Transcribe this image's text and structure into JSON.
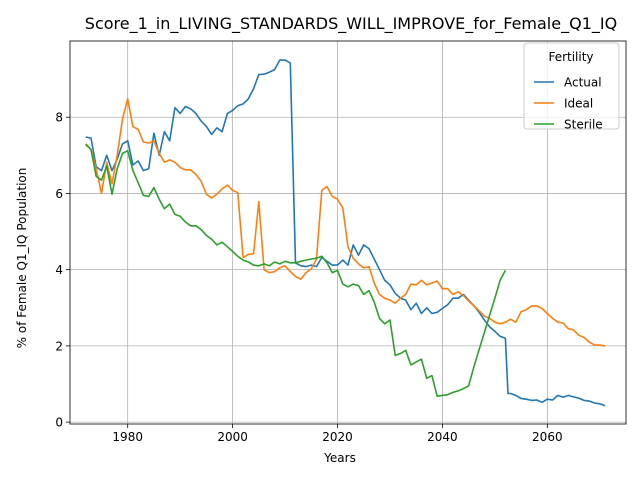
{
  "chart_data": {
    "type": "line",
    "title": "Score_1_in_LIVING_STANDARDS_WILL_IMPROVE_for_Female_Q1_IQ",
    "xlabel": "Years",
    "ylabel": "% of Female Q1_IQ Population",
    "xlim": [
      1969,
      2075
    ],
    "ylim": [
      -0.05,
      10.0
    ],
    "xticks": [
      1980,
      2000,
      2020,
      2040,
      2060
    ],
    "xtick_labels": [
      "1980",
      "2000",
      "2020",
      "2040",
      "2060"
    ],
    "yticks": [
      0,
      2,
      4,
      6,
      8
    ],
    "ytick_labels": [
      "0",
      "2",
      "4",
      "6",
      "8"
    ],
    "grid": true,
    "legend": {
      "title": "Fertility",
      "position": "top-right"
    },
    "series": [
      {
        "name": "Actual",
        "color": "#1f77b4",
        "points": [
          [
            1972,
            7.48
          ],
          [
            1973,
            7.45
          ],
          [
            1974,
            6.7
          ],
          [
            1975,
            6.6
          ],
          [
            1976,
            7.0
          ],
          [
            1977,
            6.6
          ],
          [
            1978,
            6.9
          ],
          [
            1979,
            7.3
          ],
          [
            1980,
            7.38
          ],
          [
            1981,
            6.75
          ],
          [
            1982,
            6.85
          ],
          [
            1983,
            6.6
          ],
          [
            1984,
            6.65
          ],
          [
            1985,
            7.58
          ],
          [
            1986,
            7.0
          ],
          [
            1987,
            7.62
          ],
          [
            1988,
            7.38
          ],
          [
            1989,
            8.25
          ],
          [
            1990,
            8.1
          ],
          [
            1991,
            8.28
          ],
          [
            1992,
            8.22
          ],
          [
            1993,
            8.1
          ],
          [
            1994,
            7.9
          ],
          [
            1995,
            7.76
          ],
          [
            1996,
            7.55
          ],
          [
            1997,
            7.72
          ],
          [
            1998,
            7.62
          ],
          [
            1999,
            8.1
          ],
          [
            2000,
            8.18
          ],
          [
            2001,
            8.3
          ],
          [
            2002,
            8.35
          ],
          [
            2003,
            8.48
          ],
          [
            2004,
            8.75
          ],
          [
            2005,
            9.12
          ],
          [
            2006,
            9.13
          ],
          [
            2007,
            9.18
          ],
          [
            2008,
            9.25
          ],
          [
            2009,
            9.5
          ],
          [
            2010,
            9.5
          ],
          [
            2011,
            9.42
          ],
          [
            2012,
            4.18
          ],
          [
            2013,
            4.1
          ],
          [
            2014,
            4.08
          ],
          [
            2015,
            4.12
          ],
          [
            2016,
            4.08
          ],
          [
            2017,
            4.32
          ],
          [
            2018,
            4.22
          ],
          [
            2019,
            4.12
          ],
          [
            2020,
            4.12
          ],
          [
            2021,
            4.25
          ],
          [
            2022,
            4.12
          ],
          [
            2023,
            4.65
          ],
          [
            2024,
            4.38
          ],
          [
            2025,
            4.65
          ],
          [
            2026,
            4.55
          ],
          [
            2027,
            4.28
          ],
          [
            2028,
            4.0
          ],
          [
            2029,
            3.72
          ],
          [
            2030,
            3.6
          ],
          [
            2031,
            3.38
          ],
          [
            2032,
            3.25
          ],
          [
            2033,
            3.2
          ],
          [
            2034,
            2.95
          ],
          [
            2035,
            3.12
          ],
          [
            2036,
            2.85
          ],
          [
            2037,
            3.0
          ],
          [
            2038,
            2.85
          ],
          [
            2039,
            2.88
          ],
          [
            2040,
            2.98
          ],
          [
            2041,
            3.08
          ],
          [
            2042,
            3.25
          ],
          [
            2043,
            3.25
          ],
          [
            2044,
            3.35
          ],
          [
            2045,
            3.2
          ],
          [
            2046,
            3.05
          ],
          [
            2047,
            2.88
          ],
          [
            2048,
            2.68
          ],
          [
            2049,
            2.5
          ],
          [
            2050,
            2.38
          ],
          [
            2051,
            2.25
          ],
          [
            2052,
            2.2
          ],
          [
            2052.5,
            0.75
          ],
          [
            2053,
            0.75
          ],
          [
            2054,
            0.7
          ],
          [
            2055,
            0.62
          ],
          [
            2056,
            0.6
          ],
          [
            2057,
            0.57
          ],
          [
            2058,
            0.58
          ],
          [
            2059,
            0.52
          ],
          [
            2060,
            0.6
          ],
          [
            2061,
            0.58
          ],
          [
            2062,
            0.7
          ],
          [
            2063,
            0.65
          ],
          [
            2064,
            0.7
          ],
          [
            2065,
            0.66
          ],
          [
            2066,
            0.63
          ],
          [
            2067,
            0.57
          ],
          [
            2068,
            0.55
          ],
          [
            2069,
            0.5
          ],
          [
            2070,
            0.48
          ],
          [
            2071,
            0.43
          ]
        ]
      },
      {
        "name": "Ideal",
        "color": "#ff7f0e",
        "points": [
          [
            1972,
            7.28
          ],
          [
            1973,
            7.15
          ],
          [
            1974,
            6.65
          ],
          [
            1975,
            6.0
          ],
          [
            1976,
            6.82
          ],
          [
            1977,
            6.25
          ],
          [
            1978,
            7.0
          ],
          [
            1979,
            7.95
          ],
          [
            1980,
            8.48
          ],
          [
            1981,
            7.75
          ],
          [
            1982,
            7.68
          ],
          [
            1983,
            7.35
          ],
          [
            1984,
            7.32
          ],
          [
            1985,
            7.38
          ],
          [
            1986,
            7.05
          ],
          [
            1987,
            6.82
          ],
          [
            1988,
            6.88
          ],
          [
            1989,
            6.82
          ],
          [
            1990,
            6.68
          ],
          [
            1991,
            6.62
          ],
          [
            1992,
            6.62
          ],
          [
            1993,
            6.5
          ],
          [
            1994,
            6.32
          ],
          [
            1995,
            5.98
          ],
          [
            1996,
            5.88
          ],
          [
            1997,
            5.98
          ],
          [
            1998,
            6.12
          ],
          [
            1999,
            6.22
          ],
          [
            2000,
            6.08
          ],
          [
            2001,
            6.02
          ],
          [
            2002,
            4.32
          ],
          [
            2003,
            4.4
          ],
          [
            2004,
            4.42
          ],
          [
            2005,
            5.78
          ],
          [
            2006,
            4.0
          ],
          [
            2007,
            3.92
          ],
          [
            2008,
            3.95
          ],
          [
            2009,
            4.05
          ],
          [
            2010,
            4.1
          ],
          [
            2011,
            3.95
          ],
          [
            2012,
            3.82
          ],
          [
            2013,
            3.75
          ],
          [
            2014,
            3.92
          ],
          [
            2015,
            4.02
          ],
          [
            2016,
            4.28
          ],
          [
            2017,
            6.08
          ],
          [
            2018,
            6.18
          ],
          [
            2019,
            5.92
          ],
          [
            2020,
            5.85
          ],
          [
            2021,
            5.62
          ],
          [
            2022,
            4.6
          ],
          [
            2023,
            4.3
          ],
          [
            2024,
            4.15
          ],
          [
            2025,
            4.05
          ],
          [
            2026,
            4.08
          ],
          [
            2027,
            3.65
          ],
          [
            2028,
            3.35
          ],
          [
            2029,
            3.25
          ],
          [
            2030,
            3.2
          ],
          [
            2031,
            3.12
          ],
          [
            2032,
            3.25
          ],
          [
            2033,
            3.35
          ],
          [
            2034,
            3.62
          ],
          [
            2035,
            3.6
          ],
          [
            2036,
            3.72
          ],
          [
            2037,
            3.6
          ],
          [
            2038,
            3.65
          ],
          [
            2039,
            3.7
          ],
          [
            2040,
            3.5
          ],
          [
            2041,
            3.5
          ],
          [
            2042,
            3.35
          ],
          [
            2043,
            3.42
          ],
          [
            2044,
            3.32
          ],
          [
            2045,
            3.18
          ],
          [
            2046,
            3.05
          ],
          [
            2047,
            2.92
          ],
          [
            2048,
            2.78
          ],
          [
            2049,
            2.72
          ],
          [
            2050,
            2.62
          ],
          [
            2051,
            2.58
          ],
          [
            2052,
            2.62
          ],
          [
            2053,
            2.7
          ],
          [
            2054,
            2.62
          ],
          [
            2055,
            2.9
          ],
          [
            2056,
            2.95
          ],
          [
            2057,
            3.05
          ],
          [
            2058,
            3.05
          ],
          [
            2059,
            2.98
          ],
          [
            2060,
            2.85
          ],
          [
            2061,
            2.72
          ],
          [
            2062,
            2.62
          ],
          [
            2063,
            2.6
          ],
          [
            2064,
            2.45
          ],
          [
            2065,
            2.42
          ],
          [
            2066,
            2.28
          ],
          [
            2067,
            2.22
          ],
          [
            2068,
            2.1
          ],
          [
            2069,
            2.02
          ],
          [
            2070,
            2.02
          ],
          [
            2071,
            2.0
          ]
        ]
      },
      {
        "name": "Sterile",
        "color": "#2ca02c",
        "points": [
          [
            1972,
            7.3
          ],
          [
            1973,
            7.15
          ],
          [
            1974,
            6.45
          ],
          [
            1975,
            6.35
          ],
          [
            1976,
            6.72
          ],
          [
            1977,
            5.98
          ],
          [
            1978,
            6.65
          ],
          [
            1979,
            7.05
          ],
          [
            1980,
            7.12
          ],
          [
            1981,
            6.6
          ],
          [
            1982,
            6.28
          ],
          [
            1983,
            5.95
          ],
          [
            1984,
            5.92
          ],
          [
            1985,
            6.15
          ],
          [
            1986,
            5.85
          ],
          [
            1987,
            5.6
          ],
          [
            1988,
            5.72
          ],
          [
            1989,
            5.45
          ],
          [
            1990,
            5.4
          ],
          [
            1991,
            5.25
          ],
          [
            1992,
            5.15
          ],
          [
            1993,
            5.15
          ],
          [
            1994,
            5.05
          ],
          [
            1995,
            4.9
          ],
          [
            1996,
            4.8
          ],
          [
            1997,
            4.65
          ],
          [
            1998,
            4.72
          ],
          [
            1999,
            4.6
          ],
          [
            2000,
            4.48
          ],
          [
            2001,
            4.35
          ],
          [
            2002,
            4.25
          ],
          [
            2003,
            4.2
          ],
          [
            2004,
            4.12
          ],
          [
            2005,
            4.1
          ],
          [
            2006,
            4.15
          ],
          [
            2007,
            4.1
          ],
          [
            2008,
            4.2
          ],
          [
            2009,
            4.15
          ],
          [
            2010,
            4.22
          ],
          [
            2011,
            4.18
          ],
          [
            2012,
            4.18
          ],
          [
            2013,
            4.22
          ],
          [
            2014,
            4.25
          ],
          [
            2015,
            4.28
          ],
          [
            2016,
            4.3
          ],
          [
            2017,
            4.35
          ],
          [
            2018,
            4.18
          ],
          [
            2019,
            3.92
          ],
          [
            2020,
            3.98
          ],
          [
            2021,
            3.62
          ],
          [
            2022,
            3.55
          ],
          [
            2023,
            3.62
          ],
          [
            2024,
            3.58
          ],
          [
            2025,
            3.35
          ],
          [
            2026,
            3.45
          ],
          [
            2027,
            3.15
          ],
          [
            2028,
            2.72
          ],
          [
            2029,
            2.58
          ],
          [
            2030,
            2.68
          ],
          [
            2031,
            1.75
          ],
          [
            2032,
            1.8
          ],
          [
            2033,
            1.88
          ],
          [
            2034,
            1.5
          ],
          [
            2035,
            1.58
          ],
          [
            2036,
            1.65
          ],
          [
            2037,
            1.15
          ],
          [
            2038,
            1.22
          ],
          [
            2039,
            0.68
          ],
          [
            2040,
            0.7
          ],
          [
            2041,
            0.72
          ],
          [
            2042,
            0.78
          ],
          [
            2043,
            0.82
          ],
          [
            2044,
            0.88
          ],
          [
            2045,
            0.95
          ],
          [
            2046,
            1.45
          ],
          [
            2047,
            1.9
          ],
          [
            2048,
            2.35
          ],
          [
            2049,
            2.8
          ],
          [
            2050,
            3.25
          ],
          [
            2051,
            3.72
          ],
          [
            2052,
            3.98
          ]
        ]
      }
    ]
  }
}
